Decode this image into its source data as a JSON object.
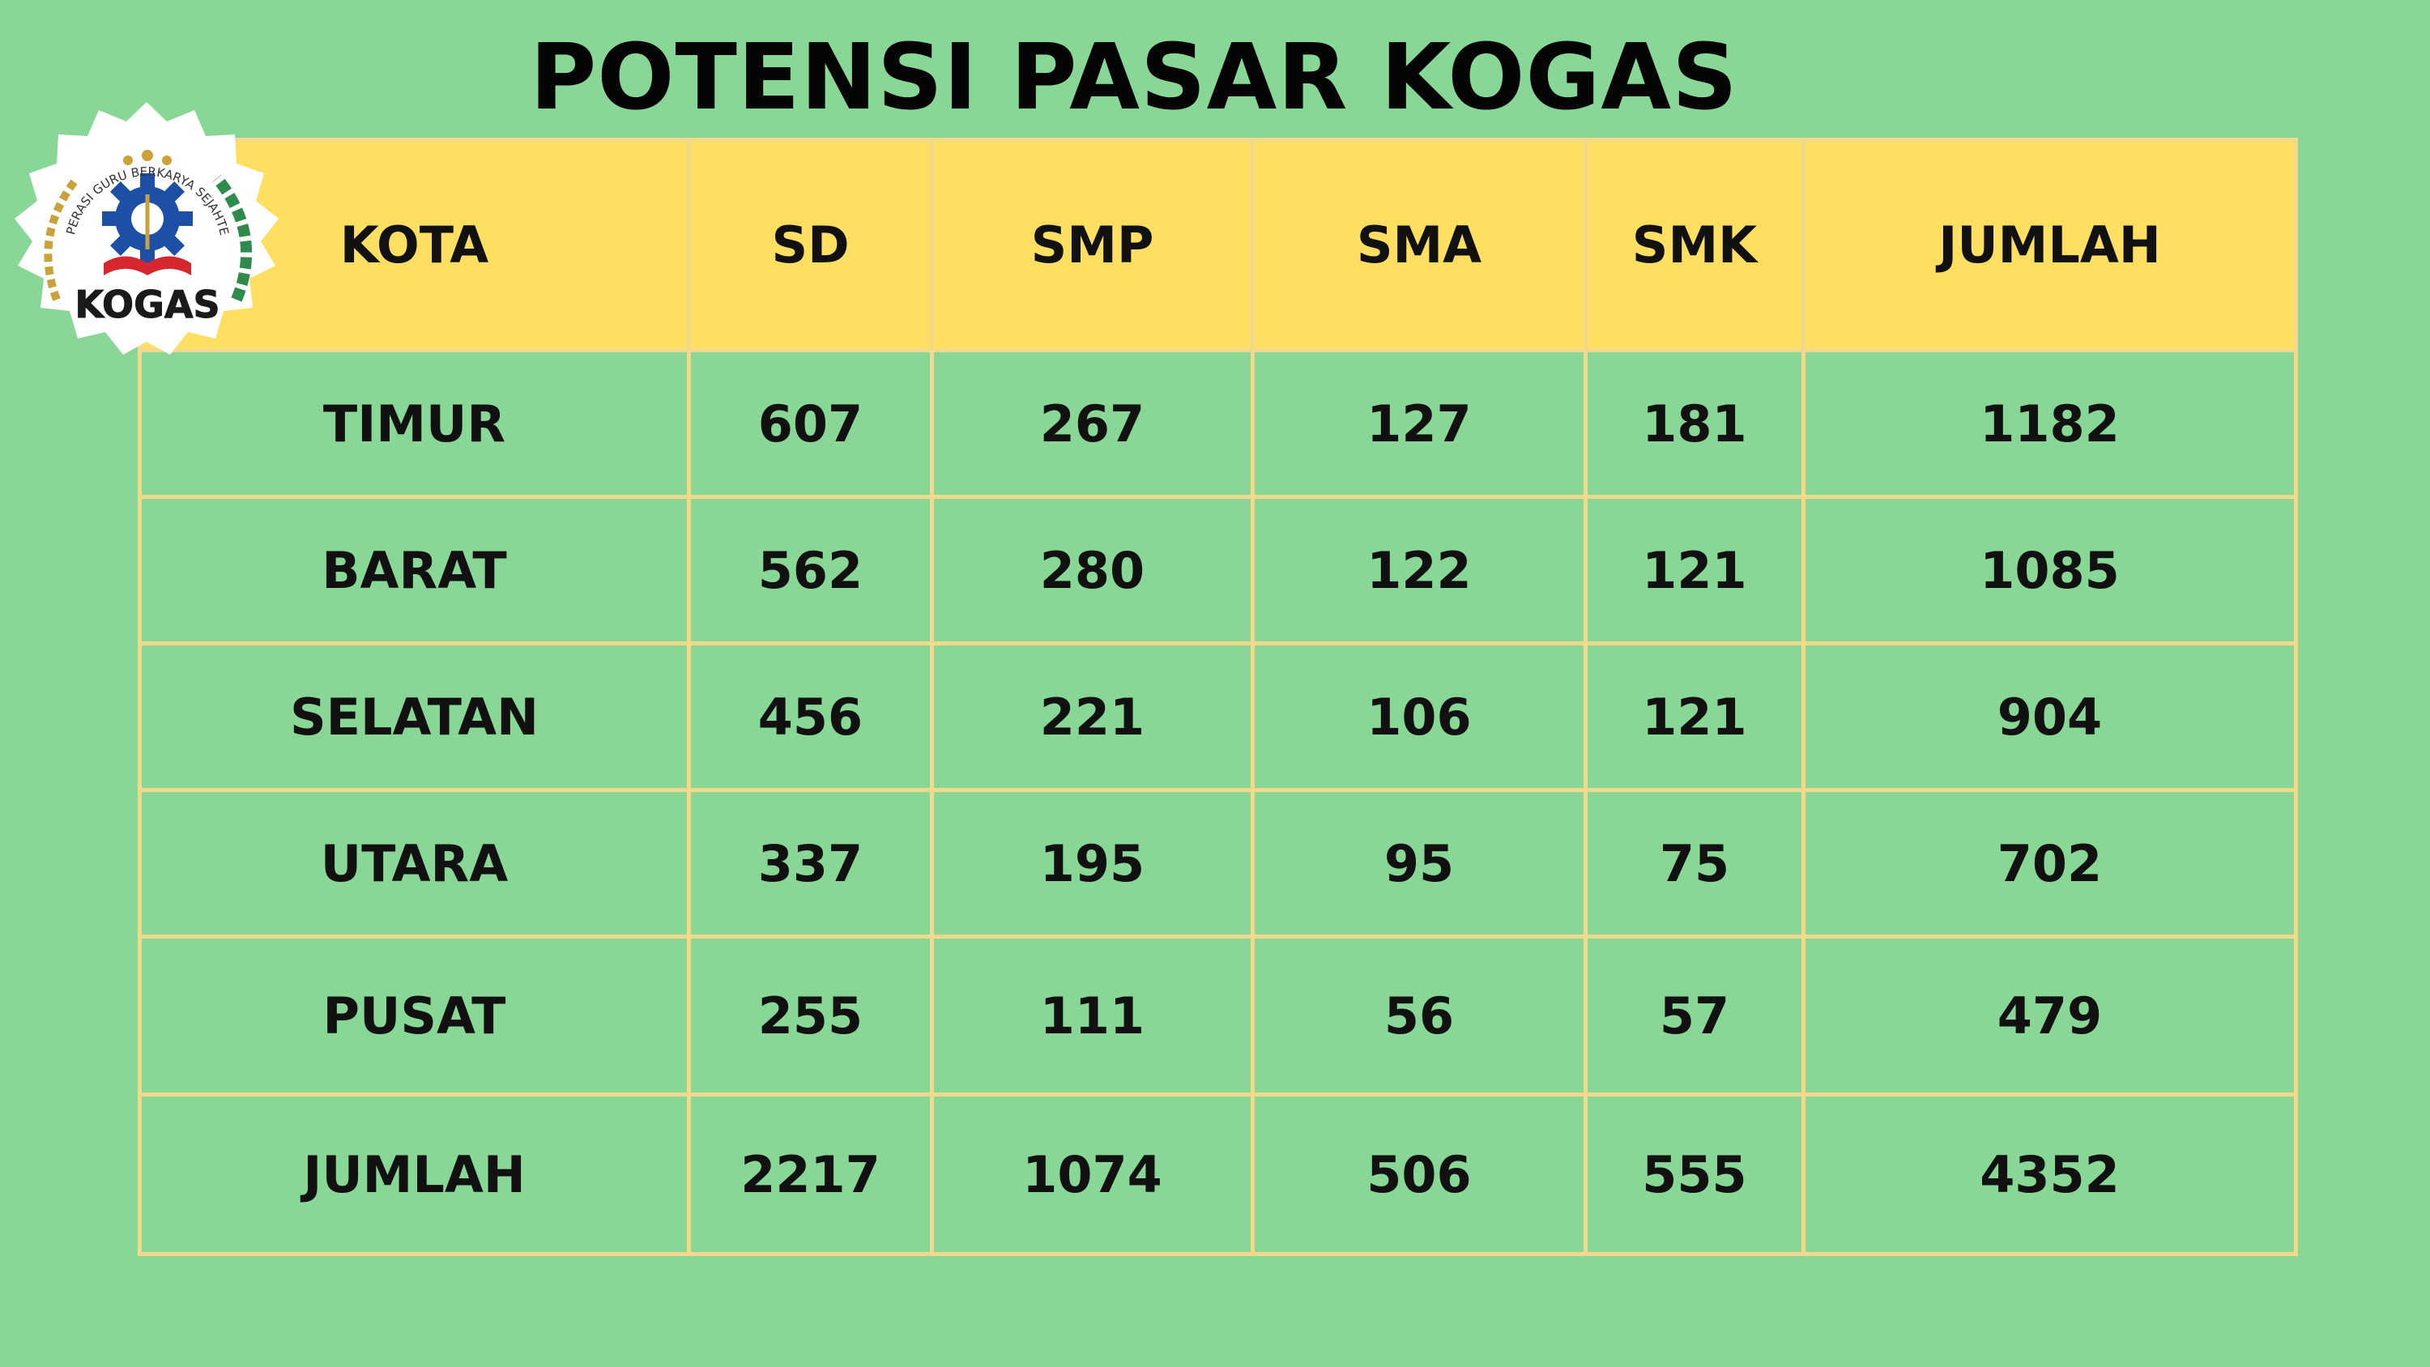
{
  "title": "POTENSI PASAR KOGAS",
  "logo": {
    "text": "KOGAS",
    "arc_text": "KOPERASI GURU BERKARYA SEJAHTERA"
  },
  "colors": {
    "background": "#88d796",
    "header": "#fedf62",
    "grid_lines": "#f2d98c",
    "text": "#111111"
  },
  "table": {
    "headers": [
      "KOTA",
      "SD",
      "SMP",
      "SMA",
      "SMK",
      "JUMLAH"
    ],
    "rows": [
      [
        "TIMUR",
        "607",
        "267",
        "127",
        "181",
        "1182"
      ],
      [
        "BARAT",
        "562",
        "280",
        "122",
        "121",
        "1085"
      ],
      [
        "SELATAN",
        "456",
        "221",
        "106",
        "121",
        "904"
      ],
      [
        "UTARA",
        "337",
        "195",
        "95",
        "75",
        "702"
      ],
      [
        "PUSAT",
        "255",
        "111",
        "56",
        "57",
        "479"
      ],
      [
        "JUMLAH",
        "2217",
        "1074",
        "506",
        "555",
        "4352"
      ]
    ]
  }
}
